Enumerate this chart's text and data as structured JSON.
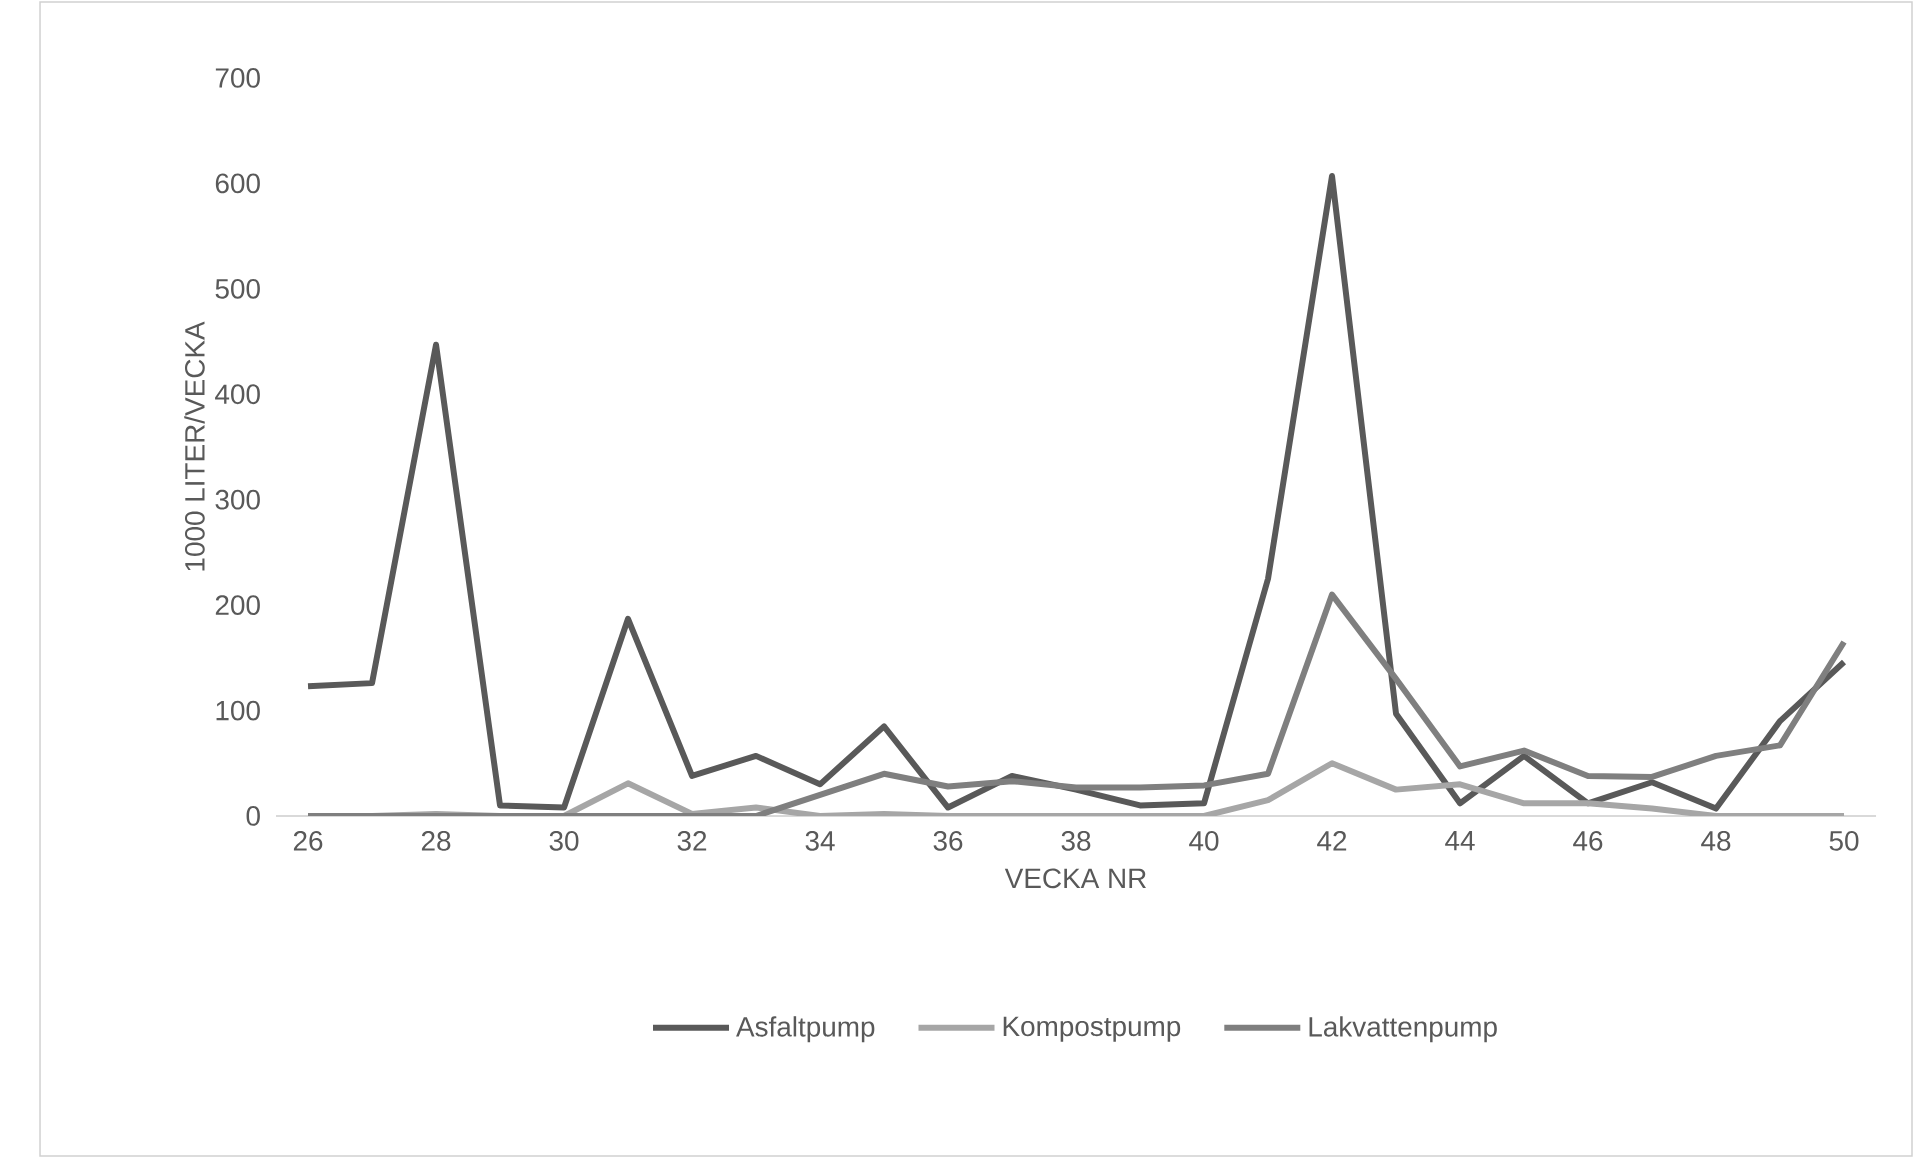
{
  "chart_data": {
    "type": "line",
    "xlabel": "VECKA NR",
    "ylabel": "1000 LITER/VECKA",
    "x": [
      26,
      27,
      28,
      29,
      30,
      31,
      32,
      33,
      34,
      35,
      36,
      37,
      38,
      39,
      40,
      41,
      42,
      43,
      44,
      45,
      46,
      47,
      48,
      49,
      50
    ],
    "series": [
      {
        "name": "Asfaltpump",
        "color": "#595959",
        "values": [
          123,
          126,
          447,
          10,
          8,
          187,
          38,
          57,
          30,
          85,
          8,
          38,
          25,
          10,
          12,
          225,
          607,
          97,
          12,
          57,
          12,
          32,
          7,
          90,
          146
        ]
      },
      {
        "name": "Kompostpump",
        "color": "#a6a6a6",
        "values": [
          0,
          0,
          2,
          0,
          0,
          31,
          2,
          8,
          0,
          2,
          0,
          0,
          0,
          0,
          0,
          15,
          50,
          25,
          30,
          12,
          12,
          7,
          0,
          0,
          0
        ]
      },
      {
        "name": "Lakvattenpump",
        "color": "#7f7f7f",
        "values": [
          0,
          0,
          0,
          0,
          0,
          0,
          0,
          0,
          20,
          40,
          28,
          33,
          27,
          27,
          29,
          40,
          210,
          130,
          47,
          62,
          38,
          37,
          57,
          67,
          165
        ]
      }
    ],
    "xlim": [
      25.5,
      50.5
    ],
    "xticks": [
      26,
      28,
      30,
      32,
      34,
      36,
      38,
      40,
      42,
      44,
      46,
      48,
      50
    ],
    "ylim": [
      0,
      700
    ],
    "yticks": [
      0,
      100,
      200,
      300,
      400,
      500,
      600,
      700
    ],
    "legend": "bottom",
    "grid": false,
    "marker": "none",
    "line_style": "solid"
  }
}
